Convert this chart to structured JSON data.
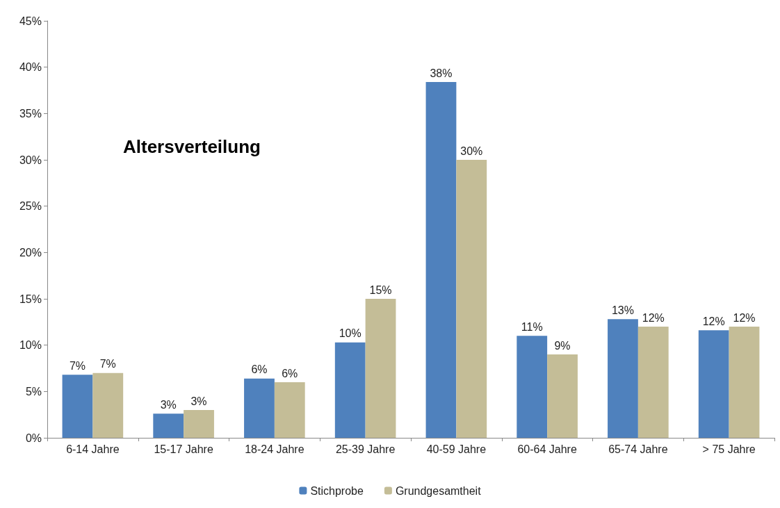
{
  "chart_data": {
    "type": "bar",
    "title": "Altersverteilung",
    "categories": [
      "6-14 Jahre",
      "15-17 Jahre",
      "18-24 Jahre",
      "25-39 Jahre",
      "40-59 Jahre",
      "60-64 Jahre",
      "65-74 Jahre",
      "> 75 Jahre"
    ],
    "series": [
      {
        "name": "Stichprobe",
        "color": "#4f81bd",
        "values": [
          6.8,
          2.6,
          6.4,
          10.3,
          38.4,
          11.0,
          12.8,
          11.6
        ],
        "value_labels": [
          "7%",
          "3%",
          "6%",
          "10%",
          "38%",
          "11%",
          "13%",
          "12%"
        ]
      },
      {
        "name": "Grundgesamtheit",
        "color": "#c4bd97",
        "values": [
          7.0,
          3.0,
          6.0,
          15.0,
          30.0,
          9.0,
          12.0,
          12.0
        ],
        "value_labels": [
          "7%",
          "3%",
          "6%",
          "15%",
          "30%",
          "9%",
          "12%",
          "12%"
        ]
      }
    ],
    "ylim": [
      0,
      45
    ],
    "yticks": [
      {
        "value": 0,
        "label": "0%"
      },
      {
        "value": 5,
        "label": "5%"
      },
      {
        "value": 10,
        "label": "10%"
      },
      {
        "value": 15,
        "label": "15%"
      },
      {
        "value": 20,
        "label": "20%"
      },
      {
        "value": 25,
        "label": "25%"
      },
      {
        "value": 30,
        "label": "30%"
      },
      {
        "value": 35,
        "label": "35%"
      },
      {
        "value": 40,
        "label": "40%"
      },
      {
        "value": 45,
        "label": "45%"
      }
    ],
    "grid": false,
    "legend": "bottom"
  }
}
